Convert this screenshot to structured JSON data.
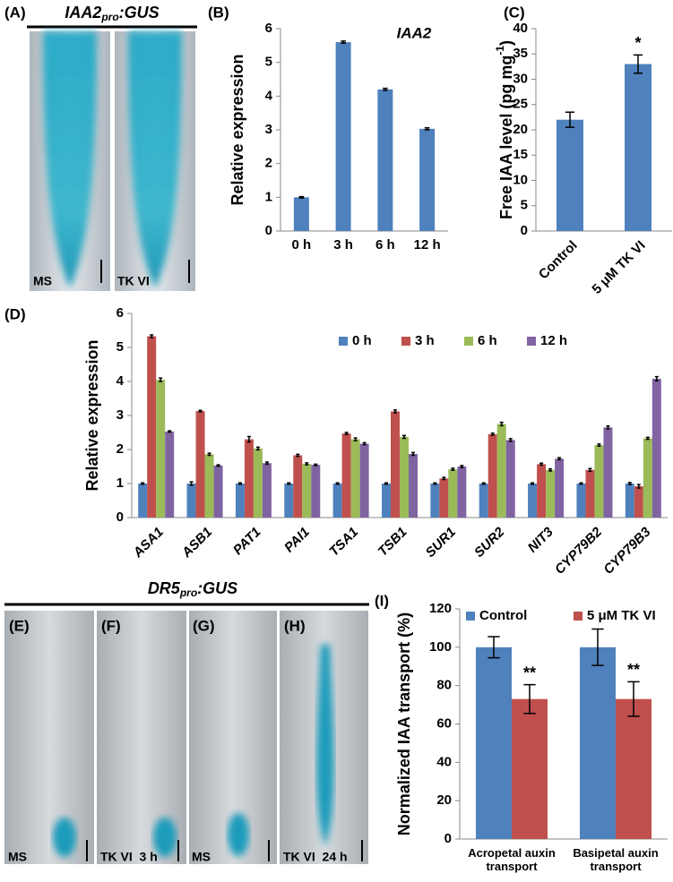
{
  "figure": {
    "panel_A": {
      "label": "(A)",
      "title": "IAA2",
      "title_sub": "pro",
      "title_end": ":GUS",
      "captions": [
        "MS",
        "TK VI"
      ]
    },
    "panels_EH": {
      "title": "DR5",
      "title_sub": "pro",
      "title_end": ":GUS",
      "labels": [
        "(E)",
        "(F)",
        "(G)",
        "(H)"
      ],
      "captions": [
        "MS",
        "TK VI  3 h",
        "MS",
        "TK VI  24 h"
      ]
    }
  },
  "chart_data": [
    {
      "type": "bar",
      "label": "(B)",
      "title": "IAA2",
      "y_label": "Relative expression",
      "categories": [
        "0 h",
        "3 h",
        "6 h",
        "12 h"
      ],
      "values": [
        1,
        5.6,
        4.2,
        3.03
      ],
      "errors": [
        0.02,
        0.03,
        0.03,
        0.03
      ],
      "color": "#4f81bd",
      "ylim": [
        0,
        6
      ],
      "yticks": [
        0,
        1,
        2,
        3,
        4,
        5,
        6
      ]
    },
    {
      "type": "bar",
      "label": "(C)",
      "y_label": "Free IAA level (pg mg",
      "y_label_sup": "-1",
      "y_label_end": ")",
      "categories": [
        "Control",
        "5 μM TK VI"
      ],
      "values": [
        22,
        33
      ],
      "errors": [
        1.5,
        1.8
      ],
      "significance": [
        null,
        "*"
      ],
      "color": "#4f81bd",
      "ylim": [
        0,
        40
      ],
      "yticks": [
        0,
        5,
        10,
        15,
        20,
        25,
        30,
        35,
        40
      ]
    },
    {
      "type": "bar",
      "label": "(D)",
      "y_label": "Relative expression",
      "categories": [
        "ASA1",
        "ASB1",
        "PAT1",
        "PAI1",
        "TSA1",
        "TSB1",
        "SUR1",
        "SUR2",
        "NIT3",
        "CYP79B2",
        "CYP79B3"
      ],
      "series": [
        {
          "name": "0 h",
          "color": "#4f81bd",
          "values": [
            1,
            1,
            1,
            1,
            1,
            1,
            1,
            1,
            1,
            1,
            1
          ],
          "errors": [
            0.02,
            0.05,
            0.02,
            0.02,
            0.02,
            0.02,
            0.02,
            0.02,
            0.02,
            0.02,
            0.03
          ]
        },
        {
          "name": "3 h",
          "color": "#c0504d",
          "values": [
            5.33,
            3.13,
            2.3,
            1.83,
            2.47,
            3.12,
            1.15,
            2.45,
            1.57,
            1.4,
            0.92
          ],
          "errors": [
            0.04,
            0.02,
            0.08,
            0.03,
            0.03,
            0.04,
            0.03,
            0.03,
            0.03,
            0.04,
            0.05
          ]
        },
        {
          "name": "6 h",
          "color": "#9bbb59",
          "values": [
            4.05,
            1.86,
            2.03,
            1.58,
            2.3,
            2.37,
            1.42,
            2.75,
            1.4,
            2.13,
            2.33
          ],
          "errors": [
            0.05,
            0.03,
            0.04,
            0.03,
            0.04,
            0.04,
            0.03,
            0.05,
            0.03,
            0.03,
            0.03
          ]
        },
        {
          "name": "12 h",
          "color": "#8064a2",
          "values": [
            2.53,
            1.53,
            1.6,
            1.55,
            2.17,
            1.87,
            1.5,
            2.28,
            1.73,
            2.65,
            4.08
          ],
          "errors": [
            0.02,
            0.02,
            0.03,
            0.02,
            0.03,
            0.04,
            0.03,
            0.04,
            0.03,
            0.04,
            0.06
          ]
        }
      ],
      "ylim": [
        0,
        6
      ],
      "yticks": [
        0,
        1,
        2,
        3,
        4,
        5,
        6
      ],
      "legend": "top"
    },
    {
      "type": "bar",
      "label": "(I)",
      "y_label": "Normalized IAA transport (%)",
      "categories": [
        "Acropetal auxin transport",
        "Basipetal auxin transport"
      ],
      "series": [
        {
          "name": "Control",
          "color": "#4f81bd",
          "values": [
            100,
            100
          ],
          "errors": [
            5.5,
            9.5
          ]
        },
        {
          "name": "5 μM TK VI",
          "color": "#c0504d",
          "values": [
            73,
            73
          ],
          "errors": [
            7.5,
            9
          ],
          "significance": [
            "**",
            "**"
          ]
        }
      ],
      "ylim": [
        0,
        120
      ],
      "yticks": [
        0,
        20,
        40,
        60,
        80,
        100,
        120
      ],
      "legend": "top"
    }
  ]
}
